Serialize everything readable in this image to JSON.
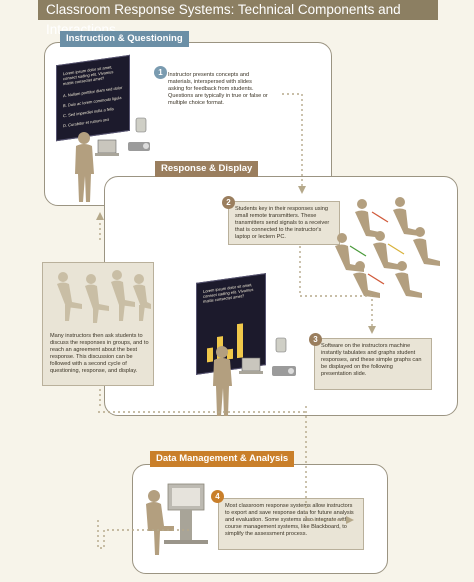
{
  "title": "Classroom Response Systems: Technical Components and Interactions",
  "sections": {
    "instruction": {
      "label": "Instruction & Questioning"
    },
    "response": {
      "label": "Response & Display"
    },
    "data": {
      "label": "Data Management & Analysis"
    }
  },
  "steps": [
    {
      "num": "1",
      "text": "Instructor presents concepts and materials, interspersed with slides asking for feedback from students. Questions are typically in true or false or multiple choice format."
    },
    {
      "num": "2",
      "text": "Students key in their responses using small remote transmitters. These transmitters send signals to a receiver that is connected to the instructor's laptop or lectern PC."
    },
    {
      "num": "3",
      "text": "Software on the instructors machine instantly tabulates and graphs student responses, and these simple graphs can be displayed on the following presentation slide."
    },
    {
      "num": "4",
      "text": "Most classroom response systems allow instructors to export and save response data for future analysis and evaluation. Some systems also integrate with course management systems, like Blackboard, to simplify the assessment process."
    }
  ],
  "discussion": {
    "text": "Many instructors then ask students to discuss the responses in groups, and to reach an agreement about the best response. This discussion can be followed with a second cycle of questioning, response, and display."
  },
  "slide1": {
    "heading": "Lorem ipsum dolor sit amet, consect sading elit. Vivamus mattis consectet amet?",
    "options": [
      "A. Nullam porttitor diam sed dolor",
      "B. Duis ac lorem commodo ligula",
      "C. Sed imperdiet nulla a felis",
      "D. Curabitur et rutrum orci"
    ]
  },
  "slide2": {
    "heading": "Lorem ipsum dolor sit amet, consect sading elit. Vivamus mattis consectet amet?"
  },
  "colors": {
    "title_bar": "#8c7f62",
    "tab_blue": "#6b8fa6",
    "tab_brown": "#9a7e5e",
    "tab_orange": "#c97f2a",
    "arrow": "#b5a88a"
  },
  "icons": [
    "instructor-silhouette-icon",
    "laptop-icon",
    "projector-icon",
    "receiver-icon",
    "students-group-icon",
    "bar-chart-icon",
    "computer-workstation-icon"
  ]
}
